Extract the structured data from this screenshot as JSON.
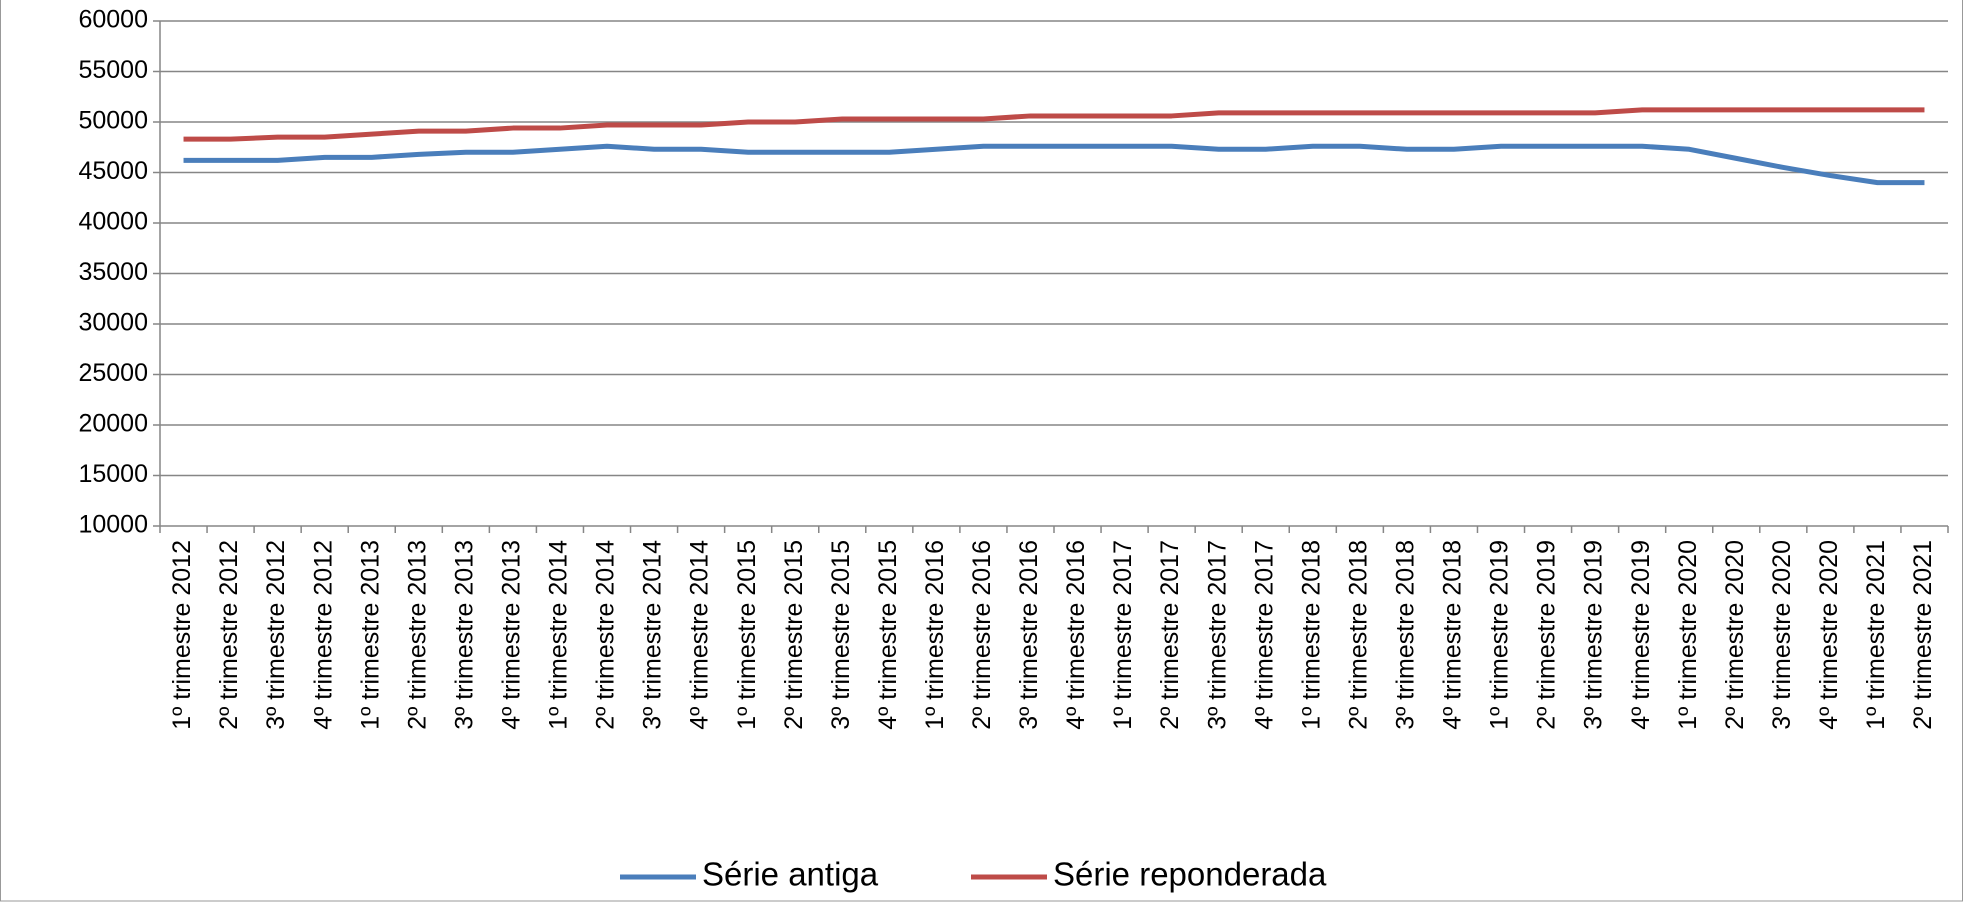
{
  "chart_data": {
    "type": "line",
    "categories": [
      "1º trimestre 2012",
      "2º trimestre 2012",
      "3º trimestre 2012",
      "4º trimestre 2012",
      "1º trimestre 2013",
      "2º trimestre 2013",
      "3º trimestre 2013",
      "4º trimestre 2013",
      "1º trimestre 2014",
      "2º trimestre 2014",
      "3º trimestre 2014",
      "4º trimestre 2014",
      "1º trimestre 2015",
      "2º trimestre 2015",
      "3º trimestre 2015",
      "4º trimestre 2015",
      "1º trimestre 2016",
      "2º trimestre 2016",
      "3º trimestre 2016",
      "4º trimestre 2016",
      "1º trimestre 2017",
      "2º trimestre 2017",
      "3º trimestre 2017",
      "4º trimestre 2017",
      "1º trimestre 2018",
      "2º trimestre 2018",
      "3º trimestre 2018",
      "4º trimestre 2018",
      "1º trimestre 2019",
      "2º trimestre 2019",
      "3º trimestre 2019",
      "4º trimestre 2019",
      "1º trimestre 2020",
      "2º trimestre 2020",
      "3º trimestre 2020",
      "4º trimestre 2020",
      "1º trimestre 2021",
      "2º trimestre 2021"
    ],
    "series": [
      {
        "name": "Série antiga",
        "color": "#4a7ebb",
        "values": [
          46200,
          46200,
          46200,
          46500,
          46500,
          46800,
          47000,
          47000,
          47300,
          47600,
          47300,
          47300,
          47000,
          47000,
          47000,
          47000,
          47300,
          47600,
          47600,
          47600,
          47600,
          47600,
          47300,
          47300,
          47600,
          47600,
          47300,
          47300,
          47600,
          47600,
          47600,
          47600,
          47300,
          46400,
          45500,
          44700,
          44000,
          44000
        ]
      },
      {
        "name": "Série reponderada",
        "color": "#be4b48",
        "values": [
          48300,
          48300,
          48500,
          48500,
          48800,
          49100,
          49100,
          49400,
          49400,
          49700,
          49700,
          49700,
          50000,
          50000,
          50300,
          50300,
          50300,
          50300,
          50600,
          50600,
          50600,
          50600,
          50900,
          50900,
          50900,
          50900,
          50900,
          50900,
          50900,
          50900,
          50900,
          51200,
          51200,
          51200,
          51200,
          51200,
          51200,
          51200
        ]
      }
    ],
    "ylim": [
      10000,
      60000
    ],
    "yticks": [
      10000,
      15000,
      20000,
      25000,
      30000,
      35000,
      40000,
      45000,
      50000,
      55000,
      60000
    ],
    "grid": true,
    "legend": "bottom"
  }
}
